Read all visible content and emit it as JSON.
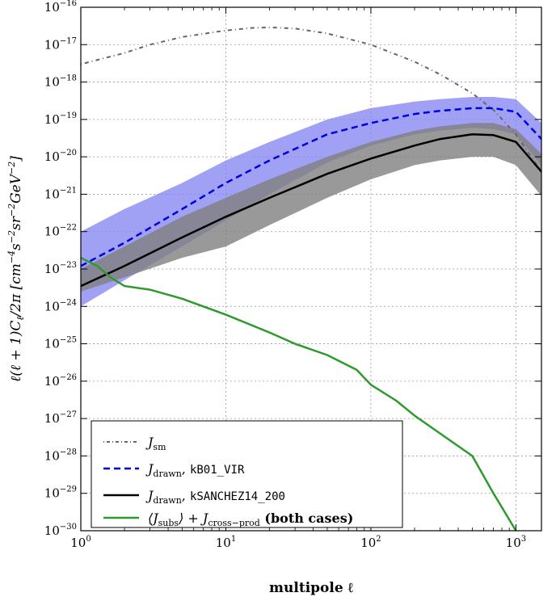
{
  "chart_data": {
    "type": "line",
    "xlabel": "multipole ℓ",
    "ylabel": "ℓ(ℓ+1)C_ℓ/2π [cm⁻⁴ s⁻² sr⁻² GeV⁻²]",
    "xscale": "log",
    "yscale": "log",
    "xlim": [
      1,
      1500
    ],
    "ylim": [
      1e-30,
      1e-16
    ],
    "x_ticks": [
      "10^0",
      "10^1",
      "10^2",
      "10^3"
    ],
    "y_ticks": [
      "10^-30",
      "10^-29",
      "10^-28",
      "10^-27",
      "10^-26",
      "10^-25",
      "10^-24",
      "10^-23",
      "10^-22",
      "10^-21",
      "10^-20",
      "10^-19",
      "10^-18",
      "10^-17",
      "10^-16"
    ],
    "grid": true,
    "legend_position": "bottom-left",
    "series": [
      {
        "name": "J_sm",
        "style": "dash-dot",
        "color": "#666666",
        "x": [
          1,
          2,
          3,
          5,
          10,
          15,
          20,
          30,
          50,
          100,
          200,
          300,
          500,
          700,
          1000,
          1500
        ],
        "y": [
          3e-18,
          6e-18,
          1e-17,
          1.6e-17,
          2.4e-17,
          2.8e-17,
          2.9e-17,
          2.7e-17,
          2e-17,
          1e-17,
          3.5e-18,
          1.6e-18,
          5e-19,
          1.8e-19,
          4e-20,
          4e-21
        ]
      },
      {
        "name": "J_drawn, kB01_VIR",
        "style": "dashed",
        "color": "#0000dd",
        "band_color": "#8080f0",
        "x": [
          1,
          2,
          5,
          10,
          20,
          50,
          100,
          200,
          300,
          500,
          700,
          1000,
          1500
        ],
        "y": [
          1.2e-23,
          5e-23,
          4e-22,
          2e-21,
          8e-21,
          4e-20,
          8e-20,
          1.4e-19,
          1.7e-19,
          2e-19,
          2e-19,
          1.6e-19,
          3e-20
        ],
        "band_low": [
          1e-24,
          5e-24,
          4e-23,
          2e-22,
          1e-21,
          7e-21,
          2e-20,
          4e-20,
          5e-20,
          6e-20,
          5.5e-20,
          4e-20,
          6e-21
        ],
        "band_high": [
          1e-22,
          4e-22,
          2e-21,
          8e-21,
          2.5e-20,
          1e-19,
          2e-19,
          3e-19,
          3.5e-19,
          4e-19,
          4e-19,
          3.5e-19,
          8e-20
        ]
      },
      {
        "name": "J_drawn, kSANCHEZ14_200",
        "style": "solid",
        "color": "#000000",
        "band_color": "#808080",
        "x": [
          1,
          2,
          5,
          10,
          20,
          50,
          100,
          200,
          300,
          500,
          700,
          1000,
          1500
        ],
        "y": [
          3.5e-24,
          1.2e-23,
          7e-23,
          2.5e-22,
          8e-22,
          3.5e-21,
          9e-21,
          2e-20,
          3e-20,
          4e-20,
          3.8e-20,
          2.5e-20,
          4e-21
        ],
        "band_low": [
          2.5e-24,
          6e-24,
          2e-23,
          4e-23,
          1.5e-22,
          8e-22,
          2.5e-21,
          6e-21,
          8e-21,
          1e-20,
          1e-20,
          6e-21,
          9e-22
        ],
        "band_high": [
          1e-23,
          4e-23,
          2.5e-22,
          8e-22,
          2.5e-21,
          1e-20,
          2.5e-20,
          5e-20,
          6.5e-20,
          8e-20,
          8e-20,
          5.5e-20,
          1.2e-20
        ]
      },
      {
        "name": "⟨J_subs⟩ + J_cross−prod (both cases)",
        "style": "solid",
        "color": "#2e9a2e",
        "x": [
          1,
          1.3,
          1.6,
          2,
          3,
          5,
          10,
          20,
          30,
          50,
          80,
          100,
          150,
          200,
          300,
          500,
          700,
          1000
        ],
        "y": [
          2e-23,
          1.2e-23,
          6e-24,
          3.5e-24,
          2.8e-24,
          1.6e-24,
          6e-25,
          2e-25,
          1e-25,
          5e-26,
          2e-26,
          8e-27,
          3e-27,
          1.2e-27,
          4e-28,
          1e-28,
          1e-29,
          1e-30
        ]
      }
    ]
  },
  "legend": {
    "entries": [
      {
        "main": "J",
        "sub": "sm",
        "rest": "",
        "mono": "",
        "bold": ""
      },
      {
        "main": "J",
        "sub": "drawn",
        "rest": ", ",
        "mono": "kB01_VIR",
        "bold": ""
      },
      {
        "main": "J",
        "sub": "drawn",
        "rest": ", ",
        "mono": "kSANCHEZ14_200",
        "bold": ""
      },
      {
        "main": "⟨J",
        "sub": "subs",
        "rest": "⟩ + J",
        "sub2": "cross−prod",
        "bold": " (both cases)"
      }
    ]
  },
  "axes": {
    "xlabel": "multipole ℓ",
    "ylabel": "ℓ(ℓ + 1)C",
    "ylabel_sub": "ℓ",
    "ylabel_rest": "/2π [cm",
    "ylabel_units": [
      "−4",
      "s",
      "−2",
      "sr",
      "−2",
      "GeV",
      "−2"
    ]
  }
}
